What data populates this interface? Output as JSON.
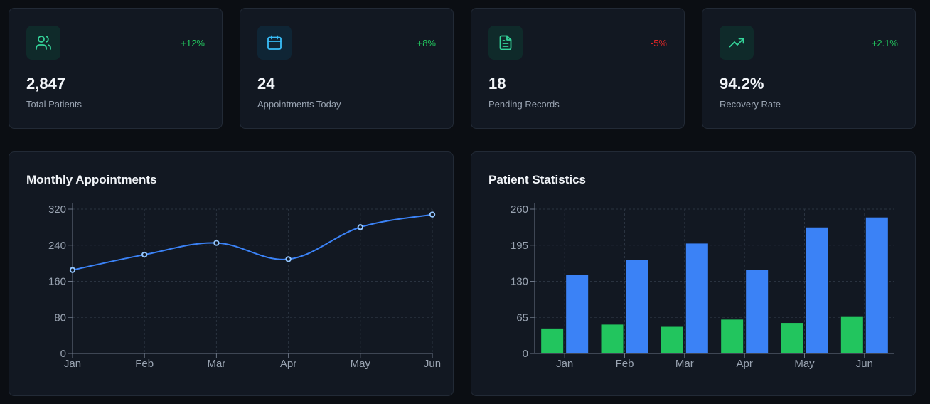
{
  "stats": [
    {
      "value": "2,847",
      "label": "Total Patients",
      "change": "+12%",
      "change_color": "#22c55e",
      "icon": "users-icon",
      "icon_color": "#34d399",
      "icon_bg": "#0f2a2a"
    },
    {
      "value": "24",
      "label": "Appointments Today",
      "change": "+8%",
      "change_color": "#22c55e",
      "icon": "calendar-icon",
      "icon_color": "#38bdf8",
      "icon_bg": "#0f2535"
    },
    {
      "value": "18",
      "label": "Pending Records",
      "change": "-5%",
      "change_color": "#dc2626",
      "icon": "document-icon",
      "icon_color": "#34d399",
      "icon_bg": "#0f2a2a"
    },
    {
      "value": "94.2%",
      "label": "Recovery Rate",
      "change": "+2.1%",
      "change_color": "#22c55e",
      "icon": "trending-up-icon",
      "icon_color": "#34d399",
      "icon_bg": "#0f2a2a"
    }
  ],
  "charts": {
    "appointments_title": "Monthly Appointments",
    "patients_title": "Patient Statistics"
  },
  "chart_data": [
    {
      "type": "line",
      "title": "Monthly Appointments",
      "categories": [
        "Jan",
        "Feb",
        "Mar",
        "Apr",
        "May",
        "Jun"
      ],
      "values": [
        185,
        219,
        245,
        209,
        280,
        308
      ],
      "yticks": [
        0,
        80,
        160,
        240,
        320
      ],
      "ylim": [
        0,
        320
      ],
      "grid": true,
      "color": "#3b82f6"
    },
    {
      "type": "bar",
      "title": "Patient Statistics",
      "categories": [
        "Jan",
        "Feb",
        "Mar",
        "Apr",
        "May",
        "Jun"
      ],
      "series": [
        {
          "values": [
            45,
            52,
            48,
            61,
            55,
            67
          ],
          "color": "#22c55e"
        },
        {
          "values": [
            141,
            169,
            198,
            150,
            227,
            245
          ],
          "color": "#3b82f6"
        }
      ],
      "yticks": [
        0,
        65,
        130,
        195,
        260
      ],
      "ylim": [
        0,
        260
      ],
      "grid": true
    }
  ]
}
